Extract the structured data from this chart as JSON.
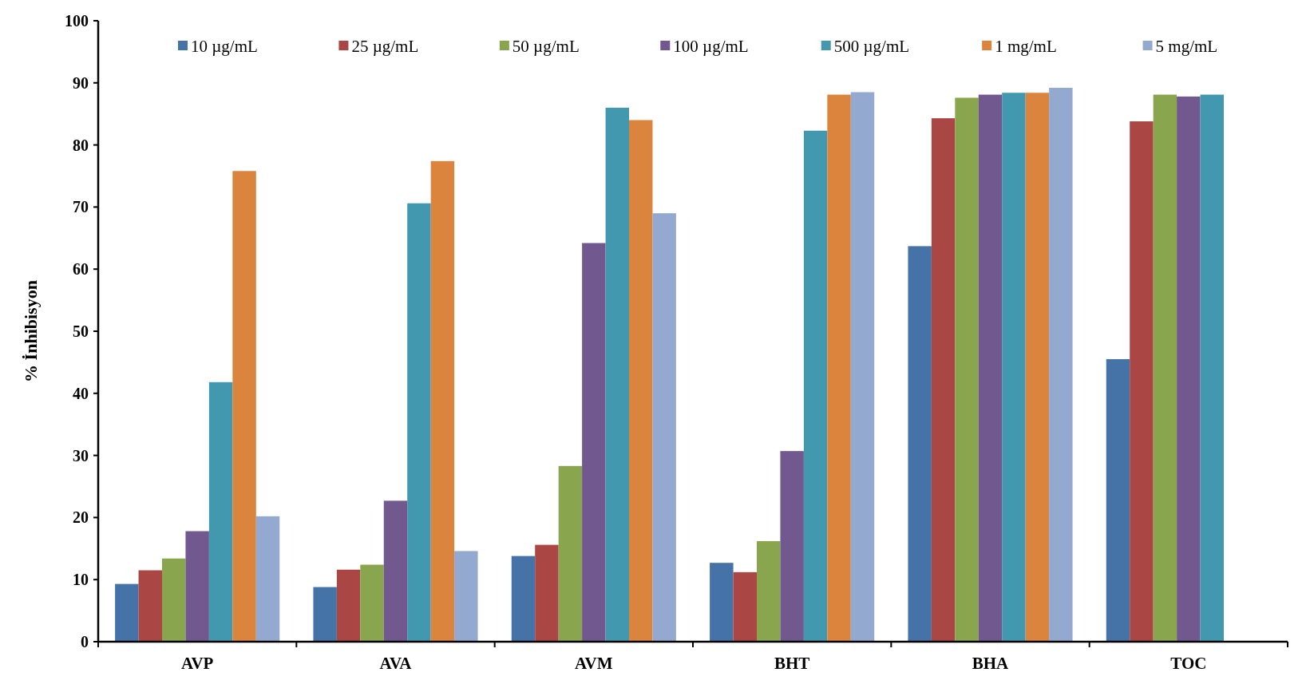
{
  "chart_data": {
    "type": "bar",
    "ylabel": "% İnhibisyon",
    "categories": [
      "AVP",
      "AVA",
      "AVM",
      "BHT",
      "BHA",
      "TOC"
    ],
    "series": [
      {
        "name": "10 µg/mL",
        "color": "#4572a7",
        "values": [
          9.3,
          8.8,
          13.8,
          12.7,
          63.7,
          45.5
        ]
      },
      {
        "name": "25 µg/mL",
        "color": "#aa4643",
        "values": [
          11.5,
          11.6,
          15.6,
          11.2,
          84.3,
          83.8
        ]
      },
      {
        "name": "50 µg/mL",
        "color": "#89a54e",
        "values": [
          13.4,
          12.4,
          28.3,
          16.2,
          87.6,
          88.1
        ]
      },
      {
        "name": "100 µg/mL",
        "color": "#71588f",
        "values": [
          17.8,
          22.7,
          64.2,
          30.7,
          88.1,
          87.8
        ]
      },
      {
        "name": "500 µg/mL",
        "color": "#4198af",
        "values": [
          41.8,
          70.6,
          86.0,
          82.3,
          88.4,
          88.1
        ]
      },
      {
        "name": "1 mg/mL",
        "color": "#db843d",
        "values": [
          75.8,
          77.4,
          84.0,
          88.1,
          88.4,
          null
        ]
      },
      {
        "name": "5 mg/mL",
        "color": "#93a9cf",
        "values": [
          20.2,
          14.6,
          69.0,
          88.5,
          89.2,
          null
        ]
      }
    ],
    "ylim": [
      0,
      100
    ],
    "yticks": [
      0,
      10,
      20,
      30,
      40,
      50,
      60,
      70,
      80,
      90,
      100
    ],
    "legend": "top"
  }
}
